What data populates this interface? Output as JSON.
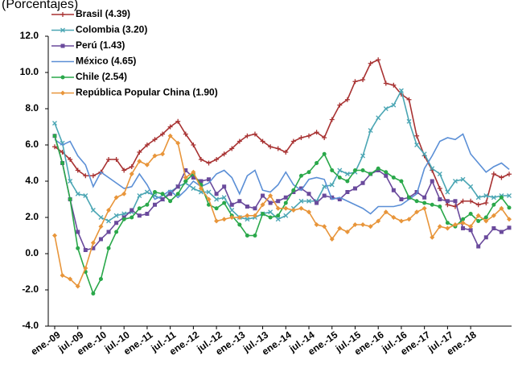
{
  "chart_data": {
    "type": "line",
    "subtitle": "(Porcentajes)",
    "categories": [
      "ene.-09",
      null,
      null,
      "jul.-09",
      null,
      null,
      "ene.-10",
      null,
      null,
      "jul.-10",
      null,
      null,
      "ene.-11",
      null,
      null,
      "jul.-11",
      null,
      null,
      "ene.-12",
      null,
      null,
      "jul.-12",
      null,
      null,
      "ene.-13",
      null,
      null,
      "jul.-13",
      null,
      null,
      "ene.-14",
      null,
      null,
      "jul.-14",
      null,
      null,
      "ene.-15",
      null,
      null,
      "jul.-15",
      null,
      null,
      "ene.-16",
      null,
      null,
      "jul.-16",
      null,
      null,
      "ene.-17",
      null,
      null,
      "jul.-17",
      null,
      null,
      "ene.-18",
      null,
      null,
      null,
      null,
      null
    ],
    "ylim": [
      -4,
      12
    ],
    "yticks": [
      {
        "value": -4,
        "label": "-4.0"
      },
      {
        "value": -2,
        "label": "-2.0"
      },
      {
        "value": 0,
        "label": "0.0"
      },
      {
        "value": 2,
        "label": "2.0"
      },
      {
        "value": 4,
        "label": "4.0"
      },
      {
        "value": 6,
        "label": "6.0"
      },
      {
        "value": 8,
        "label": "8.0"
      },
      {
        "value": 10,
        "label": "10.0"
      },
      {
        "value": 12,
        "label": "12.0"
      }
    ],
    "grid": false,
    "legend": "top-left",
    "series": [
      {
        "name": "Brasil (4.39)",
        "color": "#a83232",
        "marker": "plus",
        "values": [
          5.9,
          5.6,
          5.2,
          4.6,
          4.3,
          4.3,
          4.5,
          5.2,
          5.2,
          4.6,
          4.8,
          5.6,
          6.0,
          6.3,
          6.6,
          7.0,
          7.3,
          6.6,
          6.0,
          5.2,
          5.0,
          5.2,
          5.5,
          5.8,
          6.2,
          6.5,
          6.6,
          6.2,
          5.9,
          5.8,
          5.6,
          6.2,
          6.4,
          6.5,
          6.7,
          6.4,
          7.4,
          8.2,
          8.5,
          9.5,
          9.6,
          10.5,
          10.7,
          9.4,
          9.3,
          8.8,
          8.5,
          6.5,
          5.4,
          4.6,
          3.6,
          2.7,
          2.6,
          2.9,
          2.9,
          2.7,
          2.8,
          4.4,
          4.2,
          4.39
        ]
      },
      {
        "name": "Colombia (3.20)",
        "color": "#4ba6b4",
        "marker": "x",
        "values": [
          7.2,
          6.1,
          4.0,
          3.3,
          3.2,
          2.4,
          2.0,
          1.8,
          2.1,
          2.2,
          2.3,
          3.2,
          3.4,
          3.2,
          3.0,
          3.4,
          3.7,
          3.9,
          3.6,
          3.4,
          3.4,
          3.0,
          3.1,
          2.4,
          2.0,
          1.9,
          2.0,
          2.2,
          2.3,
          1.9,
          2.1,
          2.5,
          2.9,
          2.9,
          2.9,
          3.7,
          3.8,
          4.6,
          4.4,
          4.5,
          5.4,
          6.8,
          7.5,
          8.0,
          8.2,
          9.0,
          7.3,
          6.0,
          5.5,
          4.7,
          4.4,
          3.4,
          4.0,
          4.1,
          3.7,
          3.1,
          3.2,
          3.1,
          3.2,
          3.2
        ]
      },
      {
        "name": "Perú (1.43)",
        "color": "#6a4a9c",
        "marker": "square",
        "values": [
          6.5,
          5.0,
          3.0,
          1.2,
          0.2,
          0.3,
          0.8,
          1.2,
          1.7,
          2.0,
          2.4,
          2.1,
          2.2,
          2.7,
          3.0,
          3.3,
          3.7,
          4.6,
          4.2,
          4.0,
          4.1,
          3.3,
          3.7,
          2.7,
          2.9,
          2.6,
          2.5,
          3.2,
          2.8,
          2.9,
          3.1,
          3.4,
          3.6,
          3.3,
          2.8,
          3.2,
          3.1,
          3.0,
          3.4,
          3.6,
          3.9,
          4.4,
          4.6,
          4.3,
          3.5,
          3.0,
          3.1,
          3.4,
          3.1,
          4.0,
          3.0,
          2.9,
          2.9,
          1.4,
          1.3,
          0.4,
          0.9,
          1.4,
          1.2,
          1.43
        ]
      },
      {
        "name": "México (4.65)",
        "color": "#5b8fd6",
        "marker": "none",
        "values": [
          6.3,
          6.0,
          6.2,
          5.4,
          4.9,
          3.7,
          4.5,
          4.2,
          3.9,
          3.6,
          3.7,
          4.4,
          3.8,
          3.0,
          3.2,
          3.5,
          3.1,
          3.5,
          4.0,
          3.7,
          3.9,
          4.4,
          4.6,
          4.2,
          3.3,
          4.3,
          4.6,
          3.5,
          3.4,
          3.8,
          4.5,
          3.8,
          3.5,
          4.1,
          4.2,
          4.1,
          3.0,
          3.1,
          2.9,
          2.7,
          2.5,
          2.2,
          2.6,
          2.6,
          2.6,
          2.7,
          3.0,
          3.3,
          4.7,
          5.4,
          6.2,
          6.4,
          6.3,
          6.6,
          5.5,
          5.0,
          4.5,
          4.8,
          5.0,
          4.65
        ]
      },
      {
        "name": "Chile (2.54)",
        "color": "#2aa84a",
        "marker": "circle",
        "values": [
          6.5,
          5.0,
          3.0,
          0.3,
          -1.0,
          -2.2,
          -1.4,
          0.3,
          1.2,
          1.9,
          2.0,
          2.5,
          2.7,
          3.4,
          3.3,
          2.9,
          3.3,
          4.0,
          4.4,
          3.8,
          2.7,
          2.5,
          2.8,
          2.1,
          1.6,
          1.0,
          1.0,
          2.2,
          2.0,
          2.1,
          2.8,
          3.5,
          4.3,
          4.5,
          5.0,
          5.5,
          4.6,
          4.2,
          4.0,
          4.6,
          4.6,
          4.4,
          4.7,
          4.5,
          4.2,
          4.0,
          3.1,
          2.9,
          2.8,
          2.7,
          2.6,
          1.7,
          1.5,
          1.9,
          2.2,
          1.8,
          2.0,
          2.7,
          3.1,
          2.54
        ]
      },
      {
        "name": "República Popular China (1.90)",
        "color": "#e8953a",
        "marker": "diamond",
        "values": [
          1.0,
          -1.2,
          -1.4,
          -1.8,
          -0.8,
          0.6,
          1.5,
          2.4,
          3.1,
          3.3,
          4.4,
          5.1,
          4.9,
          5.4,
          5.5,
          6.5,
          6.1,
          4.2,
          4.5,
          3.6,
          3.0,
          1.8,
          1.9,
          2.0,
          2.0,
          2.1,
          2.1,
          2.7,
          3.2,
          2.5,
          2.5,
          2.4,
          2.5,
          2.3,
          1.6,
          1.5,
          0.8,
          1.4,
          1.2,
          1.6,
          1.6,
          1.5,
          1.8,
          2.3,
          2.0,
          1.8,
          1.9,
          2.3,
          2.5,
          0.9,
          1.5,
          1.4,
          1.6,
          1.7,
          1.5,
          2.1,
          1.8,
          2.1,
          2.5,
          1.9
        ]
      }
    ]
  }
}
